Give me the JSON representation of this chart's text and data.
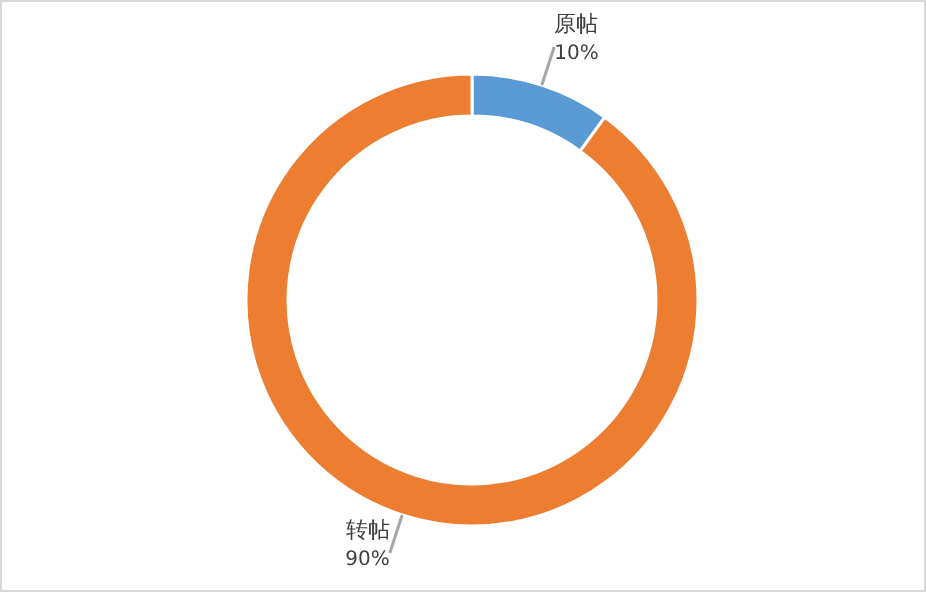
{
  "chart_data": {
    "type": "donut",
    "categories": [
      "原帖",
      "转帖"
    ],
    "values": [
      10,
      90
    ],
    "value_labels": [
      "10%",
      "90%"
    ],
    "colors": [
      "#5b9bd5",
      "#ed7d31"
    ],
    "legend": false
  }
}
